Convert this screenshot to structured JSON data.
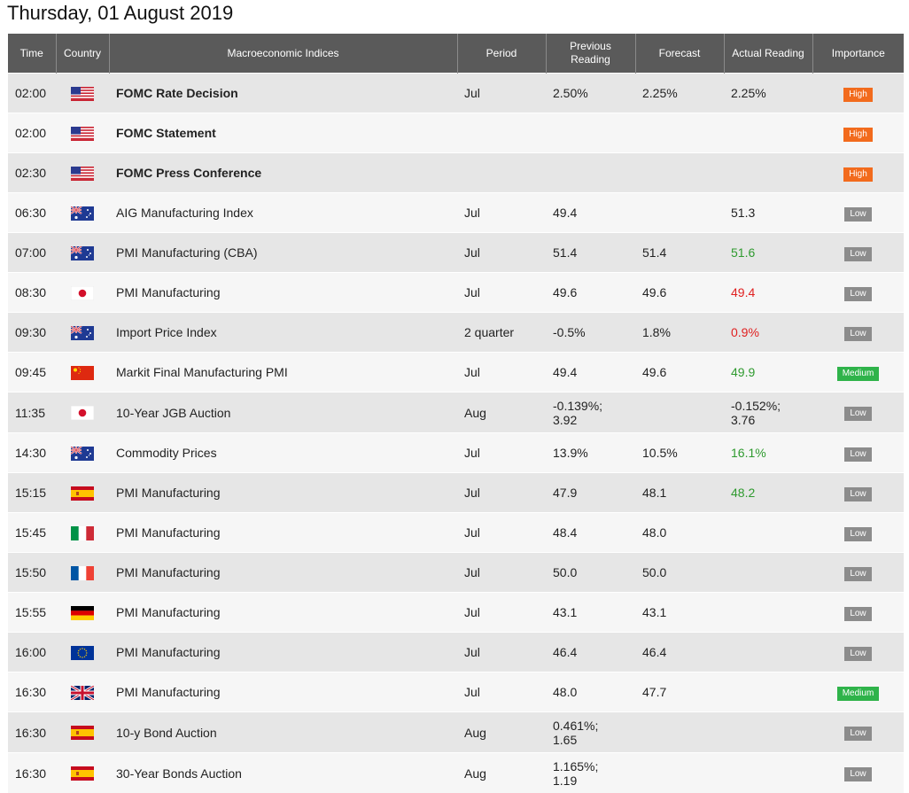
{
  "title": "Thursday, 01 August 2019",
  "headers": {
    "time": "Time",
    "country": "Country",
    "indices": "Macroeconomic Indices",
    "period": "Period",
    "previous": "Previous Reading",
    "forecast": "Forecast",
    "actual": "Actual Reading",
    "importance": "Importance"
  },
  "colors": {
    "header_bg": "#5a5a5a",
    "row_odd": "#e6e6e6",
    "row_even": "#f6f6f6",
    "high": "#f26b1d",
    "medium": "#2fb34a",
    "low": "#8c8c8c",
    "actual_up": "#2f9a2f",
    "actual_down": "#e02020"
  },
  "rows": [
    {
      "time": "02:00",
      "flag": "us-flag-icon",
      "event": "FOMC Rate Decision",
      "bold": true,
      "period": "Jul",
      "previous": [
        "2.50%"
      ],
      "forecast": "2.25%",
      "actual": [
        "2.25%"
      ],
      "actual_color": "",
      "importance": "High"
    },
    {
      "time": "02:00",
      "flag": "us-flag-icon",
      "event": "FOMC Statement",
      "bold": true,
      "period": "",
      "previous": [
        ""
      ],
      "forecast": "",
      "actual": [
        ""
      ],
      "actual_color": "",
      "importance": "High"
    },
    {
      "time": "02:30",
      "flag": "us-flag-icon",
      "event": "FOMC Press Conference",
      "bold": true,
      "period": "",
      "previous": [
        ""
      ],
      "forecast": "",
      "actual": [
        ""
      ],
      "actual_color": "",
      "importance": "High"
    },
    {
      "time": "06:30",
      "flag": "au-flag-icon",
      "event": "AIG Manufacturing Index",
      "bold": false,
      "period": "Jul",
      "previous": [
        "49.4"
      ],
      "forecast": "",
      "actual": [
        "51.3"
      ],
      "actual_color": "",
      "importance": "Low"
    },
    {
      "time": "07:00",
      "flag": "au-flag-icon",
      "event": "PMI Manufacturing (CBA)",
      "bold": false,
      "period": "Jul",
      "previous": [
        "51.4"
      ],
      "forecast": "51.4",
      "actual": [
        "51.6"
      ],
      "actual_color": "#2f9a2f",
      "importance": "Low"
    },
    {
      "time": "08:30",
      "flag": "jp-flag-icon",
      "event": "PMI Manufacturing",
      "bold": false,
      "period": "Jul",
      "previous": [
        "49.6"
      ],
      "forecast": "49.6",
      "actual": [
        "49.4"
      ],
      "actual_color": "#e02020",
      "importance": "Low"
    },
    {
      "time": "09:30",
      "flag": "au-flag-icon",
      "event": "Import Price Index",
      "bold": false,
      "period": "2 quarter",
      "previous": [
        "-0.5%"
      ],
      "forecast": "1.8%",
      "actual": [
        "0.9%"
      ],
      "actual_color": "#e02020",
      "importance": "Low"
    },
    {
      "time": "09:45",
      "flag": "cn-flag-icon",
      "event": "Markit Final Manufacturing PMI",
      "bold": false,
      "period": "Jul",
      "previous": [
        "49.4"
      ],
      "forecast": "49.6",
      "actual": [
        "49.9"
      ],
      "actual_color": "#2f9a2f",
      "importance": "Medium"
    },
    {
      "time": "11:35",
      "flag": "jp-flag-icon",
      "event": "10-Year JGB Auction",
      "bold": false,
      "period": "Aug",
      "previous": [
        "-0.139%;",
        "3.92"
      ],
      "forecast": "",
      "actual": [
        "-0.152%;",
        "3.76"
      ],
      "actual_color": "",
      "importance": "Low"
    },
    {
      "time": "14:30",
      "flag": "au-flag-icon",
      "event": "Commodity Prices",
      "bold": false,
      "period": "Jul",
      "previous": [
        "13.9%"
      ],
      "forecast": "10.5%",
      "actual": [
        "16.1%"
      ],
      "actual_color": "#2f9a2f",
      "importance": "Low"
    },
    {
      "time": "15:15",
      "flag": "es-flag-icon",
      "event": "PMI Manufacturing",
      "bold": false,
      "period": "Jul",
      "previous": [
        "47.9"
      ],
      "forecast": "48.1",
      "actual": [
        "48.2"
      ],
      "actual_color": "#2f9a2f",
      "importance": "Low"
    },
    {
      "time": "15:45",
      "flag": "it-flag-icon",
      "event": "PMI Manufacturing",
      "bold": false,
      "period": "Jul",
      "previous": [
        "48.4"
      ],
      "forecast": "48.0",
      "actual": [
        ""
      ],
      "actual_color": "",
      "importance": "Low"
    },
    {
      "time": "15:50",
      "flag": "fr-flag-icon",
      "event": "PMI Manufacturing",
      "bold": false,
      "period": "Jul",
      "previous": [
        "50.0"
      ],
      "forecast": "50.0",
      "actual": [
        ""
      ],
      "actual_color": "",
      "importance": "Low"
    },
    {
      "time": "15:55",
      "flag": "de-flag-icon",
      "event": "PMI Manufacturing",
      "bold": false,
      "period": "Jul",
      "previous": [
        "43.1"
      ],
      "forecast": "43.1",
      "actual": [
        ""
      ],
      "actual_color": "",
      "importance": "Low"
    },
    {
      "time": "16:00",
      "flag": "eu-flag-icon",
      "event": "PMI Manufacturing",
      "bold": false,
      "period": "Jul",
      "previous": [
        "46.4"
      ],
      "forecast": "46.4",
      "actual": [
        ""
      ],
      "actual_color": "",
      "importance": "Low"
    },
    {
      "time": "16:30",
      "flag": "uk-flag-icon",
      "event": "PMI Manufacturing",
      "bold": false,
      "period": "Jul",
      "previous": [
        "48.0"
      ],
      "forecast": "47.7",
      "actual": [
        ""
      ],
      "actual_color": "",
      "importance": "Medium"
    },
    {
      "time": "16:30",
      "flag": "es-flag-icon",
      "event": "10-y Bond Auction",
      "bold": false,
      "period": "Aug",
      "previous": [
        "0.461%;",
        "1.65"
      ],
      "forecast": "",
      "actual": [
        ""
      ],
      "actual_color": "",
      "importance": "Low"
    },
    {
      "time": "16:30",
      "flag": "es-flag-icon",
      "event": "30-Year Bonds Auction",
      "bold": false,
      "period": "Aug",
      "previous": [
        "1.165%;",
        "1.19"
      ],
      "forecast": "",
      "actual": [
        ""
      ],
      "actual_color": "",
      "importance": "Low"
    }
  ]
}
